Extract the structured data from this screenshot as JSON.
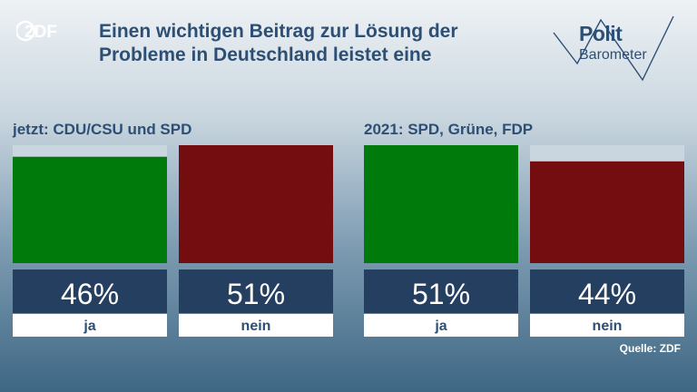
{
  "logo": {
    "name": "zdf-logo",
    "text": "ZDF"
  },
  "title": {
    "line1": "Einen wichtigen Beitrag zur Lösung der",
    "line2": "Probleme in Deutschland leistet eine"
  },
  "brand": {
    "word1": "Polit",
    "word2": "Barometer"
  },
  "source": "Quelle: ZDF",
  "colors": {
    "ja": "#007a0a",
    "nein": "#730d0f",
    "track": "#c9d6df",
    "value_box": "#253f60",
    "label_box": "#ffffff",
    "text_dark": "#2e4f74"
  },
  "chart_data": [
    {
      "type": "bar",
      "title": "jetzt: CDU/CSU und SPD",
      "categories": [
        "ja",
        "nein"
      ],
      "values": [
        46,
        51
      ],
      "value_labels": [
        "46%",
        "51%"
      ],
      "ylim": [
        0,
        51
      ]
    },
    {
      "type": "bar",
      "title": "2021: SPD, Grüne, FDP",
      "categories": [
        "ja",
        "nein"
      ],
      "values": [
        51,
        44
      ],
      "value_labels": [
        "51%",
        "44%"
      ],
      "ylim": [
        0,
        51
      ]
    }
  ]
}
